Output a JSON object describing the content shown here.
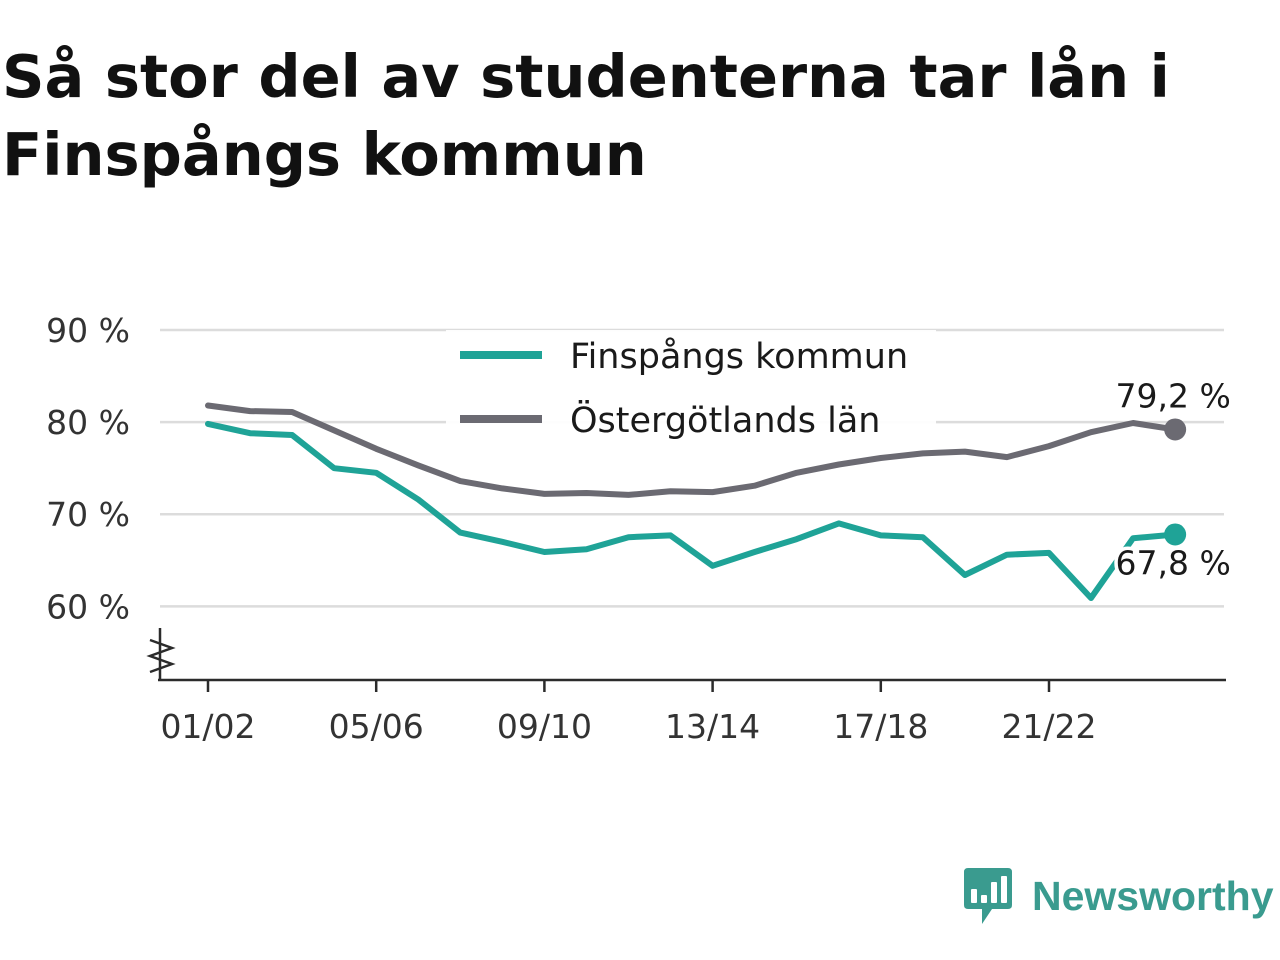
{
  "chart_data": {
    "type": "line",
    "title": "Så stor del av studenterna tar lån i Finspångs kommun",
    "xlabel": "",
    "ylabel": "",
    "categories": [
      "01/02",
      "02/03",
      "03/04",
      "04/05",
      "05/06",
      "06/07",
      "07/08",
      "08/09",
      "09/10",
      "10/11",
      "11/12",
      "12/13",
      "13/14",
      "14/15",
      "15/16",
      "16/17",
      "17/18",
      "18/19",
      "19/20",
      "20/21",
      "21/22",
      "22/23",
      "23/24",
      "24/25"
    ],
    "x_tick_labels": [
      "01/02",
      "05/06",
      "09/10",
      "13/14",
      "17/18",
      "21/22"
    ],
    "y_ticks": [
      {
        "value": 60,
        "label": "60 %"
      },
      {
        "value": 70,
        "label": "70 %"
      },
      {
        "value": 80,
        "label": "80 %"
      },
      {
        "value": 90,
        "label": "90 %"
      }
    ],
    "ylim": [
      52,
      90
    ],
    "grid": true,
    "axis_break": true,
    "legend_position": "top-center",
    "series": [
      {
        "name": "Finspångs kommun",
        "color": "#1fa397",
        "values": [
          79.8,
          78.8,
          78.6,
          75.0,
          74.5,
          71.6,
          68.0,
          67.0,
          65.9,
          66.2,
          67.5,
          67.7,
          64.4,
          65.9,
          67.3,
          69.0,
          67.7,
          67.5,
          63.4,
          65.6,
          65.8,
          60.9,
          67.4,
          67.8
        ],
        "end_label": "67,8 %"
      },
      {
        "name": "Östergötlands län",
        "color": "#6b6a72",
        "values": [
          81.8,
          81.2,
          81.1,
          79.1,
          77.1,
          75.3,
          73.6,
          72.8,
          72.2,
          72.3,
          72.1,
          72.5,
          72.4,
          73.1,
          74.5,
          75.4,
          76.1,
          76.6,
          76.8,
          76.2,
          77.4,
          78.9,
          79.9,
          79.2
        ],
        "end_label": "79,2 %"
      }
    ]
  },
  "brand": {
    "name": "Newsworthy",
    "icon": "newsworthy-logo-icon",
    "color": "#3a9b8f"
  }
}
